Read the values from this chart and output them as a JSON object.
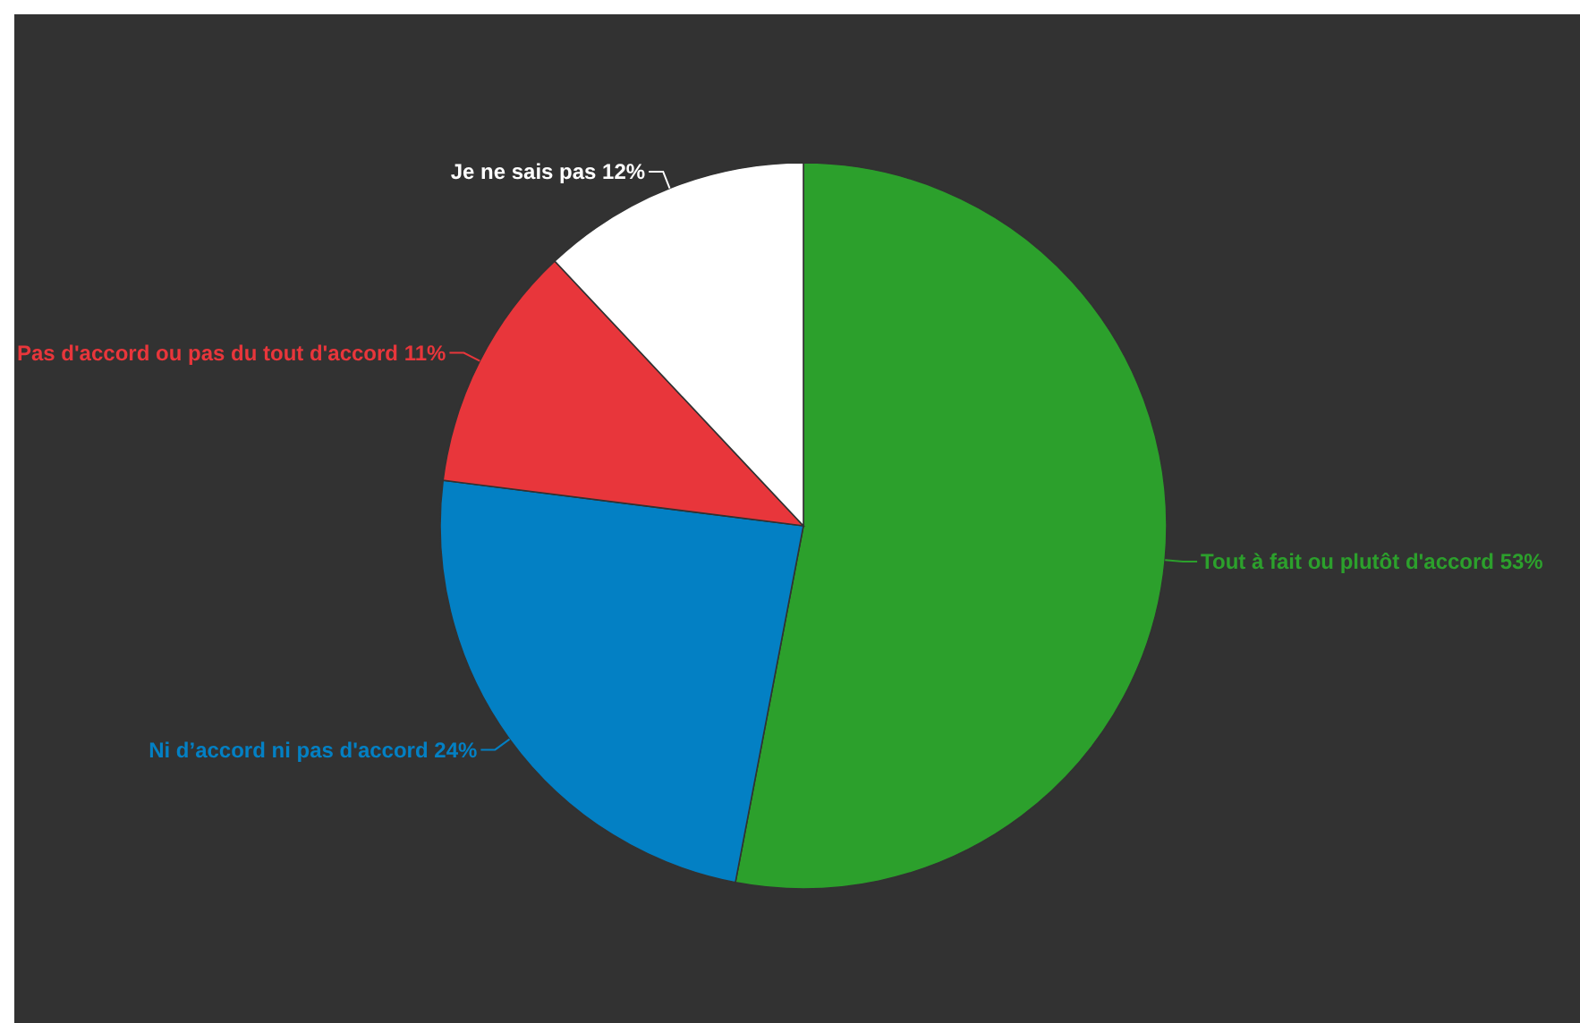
{
  "chart_data": {
    "type": "pie",
    "categories": [
      "Tout à fait ou plutôt d'accord",
      "Ni d’accord ni pas d'accord",
      "Pas d'accord ou pas du tout d'accord",
      "Je ne sais pas"
    ],
    "values": [
      53,
      24,
      11,
      12
    ],
    "value_labels": [
      "53%",
      "24%",
      "11%",
      "12%"
    ],
    "colors": [
      "#2ca02c",
      "#0380c4",
      "#e8363b",
      "#ffffff"
    ]
  }
}
